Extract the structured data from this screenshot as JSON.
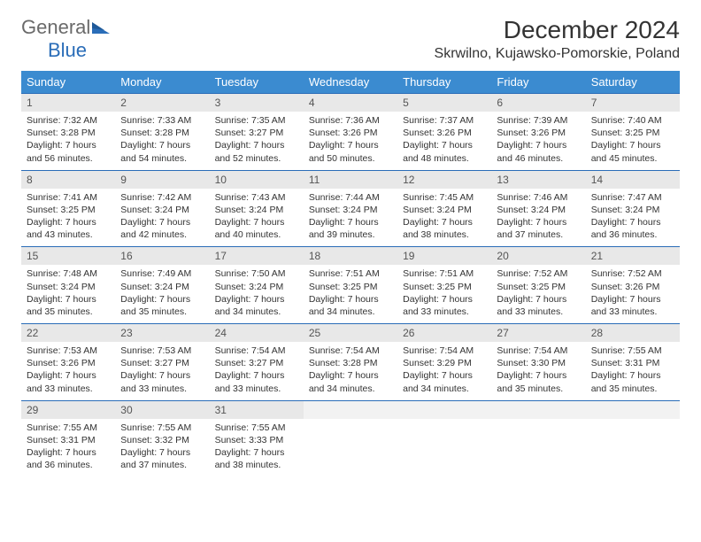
{
  "brand": {
    "text1": "General",
    "text2": "Blue"
  },
  "header": {
    "month_title": "December 2024",
    "location": "Skrwilno, Kujawsko-Pomorskie, Poland"
  },
  "colors": {
    "header_bg": "#3b8bd0",
    "header_text": "#ffffff",
    "daynum_bg": "#e8e8e8",
    "row_border": "#2a6db8",
    "brand_blue": "#2a6db8"
  },
  "calendar": {
    "day_labels": [
      "Sunday",
      "Monday",
      "Tuesday",
      "Wednesday",
      "Thursday",
      "Friday",
      "Saturday"
    ],
    "weeks": [
      [
        {
          "num": "1",
          "sunrise": "Sunrise: 7:32 AM",
          "sunset": "Sunset: 3:28 PM",
          "daylight": "Daylight: 7 hours and 56 minutes."
        },
        {
          "num": "2",
          "sunrise": "Sunrise: 7:33 AM",
          "sunset": "Sunset: 3:28 PM",
          "daylight": "Daylight: 7 hours and 54 minutes."
        },
        {
          "num": "3",
          "sunrise": "Sunrise: 7:35 AM",
          "sunset": "Sunset: 3:27 PM",
          "daylight": "Daylight: 7 hours and 52 minutes."
        },
        {
          "num": "4",
          "sunrise": "Sunrise: 7:36 AM",
          "sunset": "Sunset: 3:26 PM",
          "daylight": "Daylight: 7 hours and 50 minutes."
        },
        {
          "num": "5",
          "sunrise": "Sunrise: 7:37 AM",
          "sunset": "Sunset: 3:26 PM",
          "daylight": "Daylight: 7 hours and 48 minutes."
        },
        {
          "num": "6",
          "sunrise": "Sunrise: 7:39 AM",
          "sunset": "Sunset: 3:26 PM",
          "daylight": "Daylight: 7 hours and 46 minutes."
        },
        {
          "num": "7",
          "sunrise": "Sunrise: 7:40 AM",
          "sunset": "Sunset: 3:25 PM",
          "daylight": "Daylight: 7 hours and 45 minutes."
        }
      ],
      [
        {
          "num": "8",
          "sunrise": "Sunrise: 7:41 AM",
          "sunset": "Sunset: 3:25 PM",
          "daylight": "Daylight: 7 hours and 43 minutes."
        },
        {
          "num": "9",
          "sunrise": "Sunrise: 7:42 AM",
          "sunset": "Sunset: 3:24 PM",
          "daylight": "Daylight: 7 hours and 42 minutes."
        },
        {
          "num": "10",
          "sunrise": "Sunrise: 7:43 AM",
          "sunset": "Sunset: 3:24 PM",
          "daylight": "Daylight: 7 hours and 40 minutes."
        },
        {
          "num": "11",
          "sunrise": "Sunrise: 7:44 AM",
          "sunset": "Sunset: 3:24 PM",
          "daylight": "Daylight: 7 hours and 39 minutes."
        },
        {
          "num": "12",
          "sunrise": "Sunrise: 7:45 AM",
          "sunset": "Sunset: 3:24 PM",
          "daylight": "Daylight: 7 hours and 38 minutes."
        },
        {
          "num": "13",
          "sunrise": "Sunrise: 7:46 AM",
          "sunset": "Sunset: 3:24 PM",
          "daylight": "Daylight: 7 hours and 37 minutes."
        },
        {
          "num": "14",
          "sunrise": "Sunrise: 7:47 AM",
          "sunset": "Sunset: 3:24 PM",
          "daylight": "Daylight: 7 hours and 36 minutes."
        }
      ],
      [
        {
          "num": "15",
          "sunrise": "Sunrise: 7:48 AM",
          "sunset": "Sunset: 3:24 PM",
          "daylight": "Daylight: 7 hours and 35 minutes."
        },
        {
          "num": "16",
          "sunrise": "Sunrise: 7:49 AM",
          "sunset": "Sunset: 3:24 PM",
          "daylight": "Daylight: 7 hours and 35 minutes."
        },
        {
          "num": "17",
          "sunrise": "Sunrise: 7:50 AM",
          "sunset": "Sunset: 3:24 PM",
          "daylight": "Daylight: 7 hours and 34 minutes."
        },
        {
          "num": "18",
          "sunrise": "Sunrise: 7:51 AM",
          "sunset": "Sunset: 3:25 PM",
          "daylight": "Daylight: 7 hours and 34 minutes."
        },
        {
          "num": "19",
          "sunrise": "Sunrise: 7:51 AM",
          "sunset": "Sunset: 3:25 PM",
          "daylight": "Daylight: 7 hours and 33 minutes."
        },
        {
          "num": "20",
          "sunrise": "Sunrise: 7:52 AM",
          "sunset": "Sunset: 3:25 PM",
          "daylight": "Daylight: 7 hours and 33 minutes."
        },
        {
          "num": "21",
          "sunrise": "Sunrise: 7:52 AM",
          "sunset": "Sunset: 3:26 PM",
          "daylight": "Daylight: 7 hours and 33 minutes."
        }
      ],
      [
        {
          "num": "22",
          "sunrise": "Sunrise: 7:53 AM",
          "sunset": "Sunset: 3:26 PM",
          "daylight": "Daylight: 7 hours and 33 minutes."
        },
        {
          "num": "23",
          "sunrise": "Sunrise: 7:53 AM",
          "sunset": "Sunset: 3:27 PM",
          "daylight": "Daylight: 7 hours and 33 minutes."
        },
        {
          "num": "24",
          "sunrise": "Sunrise: 7:54 AM",
          "sunset": "Sunset: 3:27 PM",
          "daylight": "Daylight: 7 hours and 33 minutes."
        },
        {
          "num": "25",
          "sunrise": "Sunrise: 7:54 AM",
          "sunset": "Sunset: 3:28 PM",
          "daylight": "Daylight: 7 hours and 34 minutes."
        },
        {
          "num": "26",
          "sunrise": "Sunrise: 7:54 AM",
          "sunset": "Sunset: 3:29 PM",
          "daylight": "Daylight: 7 hours and 34 minutes."
        },
        {
          "num": "27",
          "sunrise": "Sunrise: 7:54 AM",
          "sunset": "Sunset: 3:30 PM",
          "daylight": "Daylight: 7 hours and 35 minutes."
        },
        {
          "num": "28",
          "sunrise": "Sunrise: 7:55 AM",
          "sunset": "Sunset: 3:31 PM",
          "daylight": "Daylight: 7 hours and 35 minutes."
        }
      ],
      [
        {
          "num": "29",
          "sunrise": "Sunrise: 7:55 AM",
          "sunset": "Sunset: 3:31 PM",
          "daylight": "Daylight: 7 hours and 36 minutes."
        },
        {
          "num": "30",
          "sunrise": "Sunrise: 7:55 AM",
          "sunset": "Sunset: 3:32 PM",
          "daylight": "Daylight: 7 hours and 37 minutes."
        },
        {
          "num": "31",
          "sunrise": "Sunrise: 7:55 AM",
          "sunset": "Sunset: 3:33 PM",
          "daylight": "Daylight: 7 hours and 38 minutes."
        },
        {
          "empty": true
        },
        {
          "empty": true
        },
        {
          "empty": true
        },
        {
          "empty": true
        }
      ]
    ]
  }
}
